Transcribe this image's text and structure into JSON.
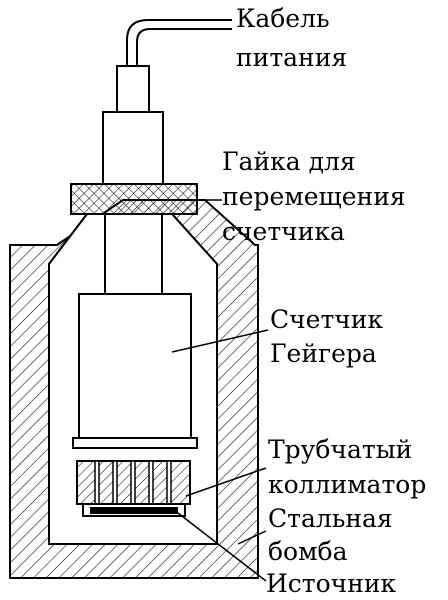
{
  "labels": {
    "cable_line1": "Кабель",
    "cable_line2": "питания",
    "nut_line1": "Гайка для",
    "nut_line2": "перемещения",
    "nut_line3": "счетчика",
    "counter_line1": "Счетчик",
    "counter_line2": "Гейгера",
    "collimator_line1": "Трубчатый",
    "collimator_line2": "коллиматор",
    "bomb_line1": "Стальная",
    "bomb_line2": "бомба",
    "source": "Источник"
  },
  "colors": {
    "ink": "#000000",
    "background": "#ffffff"
  }
}
